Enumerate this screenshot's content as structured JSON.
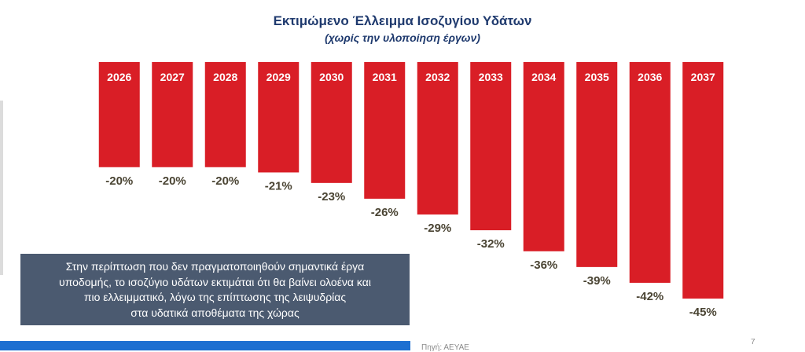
{
  "chart_data": {
    "type": "bar",
    "title": "Εκτιμώμενο Έλλειμμα Ισοζυγίου Υδάτων",
    "subtitle": "(χωρίς την υλοποίηση έργων)",
    "categories": [
      "2026",
      "2027",
      "2028",
      "2029",
      "2030",
      "2031",
      "2032",
      "2033",
      "2034",
      "2035",
      "2036",
      "2037"
    ],
    "values": [
      -20,
      -20,
      -20,
      -21,
      -23,
      -26,
      -29,
      -32,
      -36,
      -39,
      -42,
      -45
    ],
    "value_labels": [
      "-20%",
      "-20%",
      "-20%",
      "-21%",
      "-23%",
      "-26%",
      "-29%",
      "-32%",
      "-36%",
      "-39%",
      "-42%",
      "-45%"
    ],
    "unit": "%",
    "ylim": [
      -45,
      0
    ],
    "grid": false,
    "legend": "none",
    "orientation": "downward from top axis",
    "bar_color": "#d91e26",
    "category_label_color": "#ffffff",
    "value_label_color": "#4a4433"
  },
  "note": {
    "lines": [
      "Στην περίπτωση που δεν πραγματοποιηθούν σημαντικά έργα",
      "υποδομής, το ισοζύγιο υδάτων εκτιμάται ότι θα βαίνει ολοένα και",
      "πιο ελλειμματικό, λόγω της επίπτωσης της λειψυδρίας",
      "στα υδατικά αποθέματα της χώρας"
    ],
    "background": "#4b5a70"
  },
  "footer": {
    "source": "Πηγή: ΑΕΥΑΕ",
    "page_number": "7",
    "band_color": "#1d6fd1"
  }
}
